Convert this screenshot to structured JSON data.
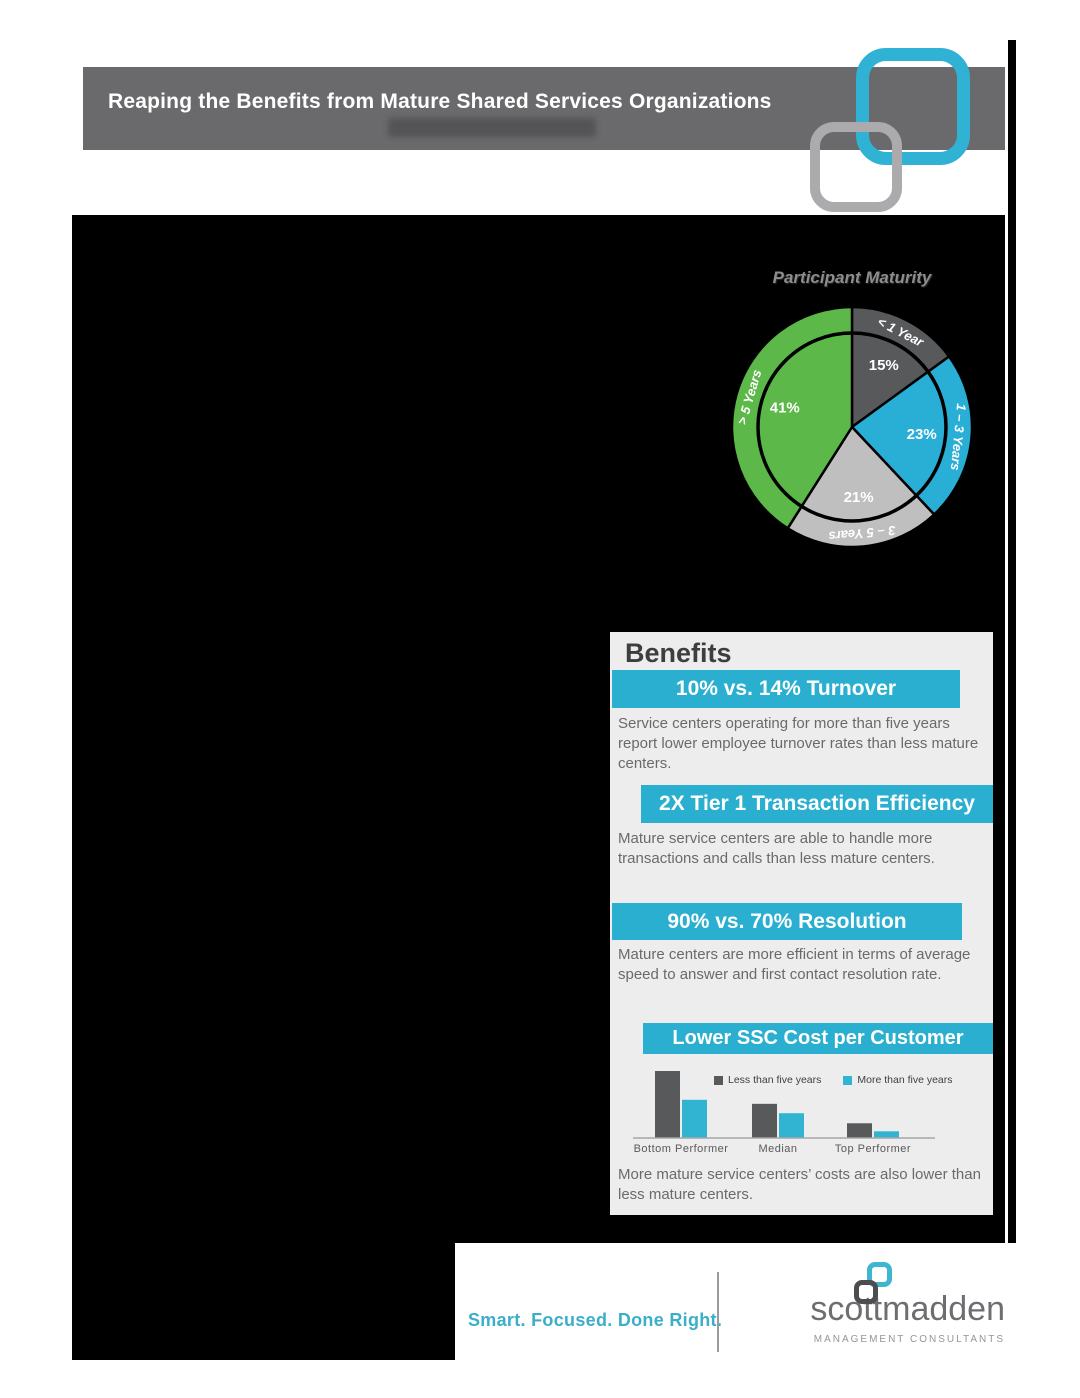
{
  "header": {
    "title": "Reaping the Benefits from Mature Shared Services Organizations"
  },
  "pie_section": {
    "title": "Participant Maturity"
  },
  "benefits": {
    "heading": "Benefits",
    "items": [
      {
        "banner": "10% vs. 14% Turnover",
        "body": "Service centers operating for more than five years report lower employee turnover rates than less mature centers."
      },
      {
        "banner": "2X Tier 1 Transaction Efficiency",
        "body": "Mature service centers are able to handle more transactions and calls than less mature centers."
      },
      {
        "banner": "90% vs. 70% Resolution",
        "body": "Mature centers are more efficient in terms of average speed to answer and first contact resolution rate."
      },
      {
        "banner": "Lower SSC Cost per Customer",
        "body": "More mature service centers’ costs are also lower than less mature centers."
      }
    ]
  },
  "chart_data": [
    {
      "type": "pie",
      "title": "Participant Maturity",
      "start_angle_deg": 0,
      "direction": "clockwise",
      "donut_ring": true,
      "slices": [
        {
          "label": "< 1 Year",
          "value": 15,
          "pct_label": "15%",
          "color": "#58595b"
        },
        {
          "label": "1 – 3 Years",
          "value": 23,
          "pct_label": "23%",
          "color": "#29aed6"
        },
        {
          "label": "3 – 5 Years",
          "value": 21,
          "pct_label": "21%",
          "color": "#bfbfbf"
        },
        {
          "label": "> 5 Years",
          "value": 41,
          "pct_label": "41%",
          "color": "#5cb848"
        }
      ]
    },
    {
      "type": "bar",
      "title": "Lower SSC Cost per Customer",
      "categories": [
        "Bottom Performer",
        "Median",
        "Top Performer"
      ],
      "series": [
        {
          "name": "Less than five years",
          "color": "#58595b",
          "values": [
            100,
            51,
            22
          ]
        },
        {
          "name": "More than five years",
          "color": "#31b4d2",
          "values": [
            57,
            37,
            10
          ]
        }
      ],
      "ylabel": "",
      "y_axis_visible": false,
      "values_are_relative": true
    }
  ],
  "footer": {
    "tagline": "Smart. Focused. Done Right.",
    "brand": "scottmadden",
    "brand_sub": "MANAGEMENT CONSULTANTS"
  },
  "colors": {
    "accent_cyan": "#2bafd0",
    "header_gray": "#6a6a6c",
    "panel_gray": "#ededed",
    "bar_dark": "#58595b",
    "bar_cyan": "#31b4d2",
    "pie_green": "#5cb848",
    "tagline_cyan": "#3baec9"
  }
}
